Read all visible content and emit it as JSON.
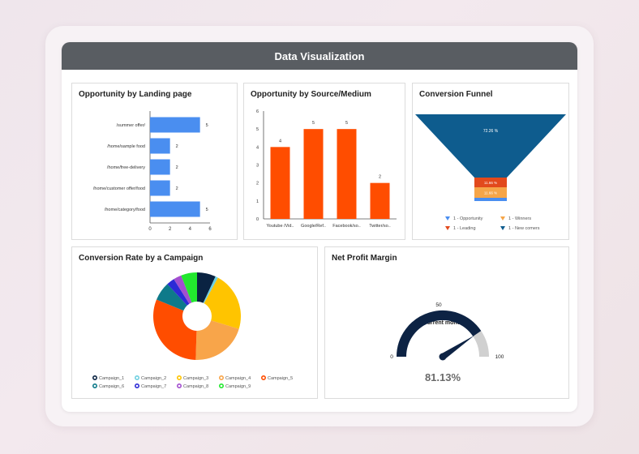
{
  "header": {
    "title": "Data Visualization"
  },
  "cards": {
    "landing": {
      "title": "Opportunity by Landing page"
    },
    "source": {
      "title": "Opportunity by Source/Medium"
    },
    "funnel": {
      "title": "Conversion Funnel"
    },
    "campaign": {
      "title": "Conversion Rate by a Campaign"
    },
    "profit": {
      "title": "Net Profit Margin"
    }
  },
  "chart_data": [
    {
      "id": "landing",
      "type": "bar",
      "orientation": "horizontal",
      "title": "Opportunity by Landing page",
      "categories": [
        "/summer offer/",
        "/home/sample food",
        "/home/free-delivery",
        "/home/customer offer/food",
        "/home/category/food"
      ],
      "values": [
        5,
        2,
        2,
        2,
        5
      ],
      "xticks": [
        "0",
        "2",
        "4",
        "6"
      ],
      "xlim": [
        0,
        6
      ],
      "color": "#4a8ef0"
    },
    {
      "id": "source",
      "type": "bar",
      "title": "Opportunity by Source/Medium",
      "categories": [
        "Youtube /Vid..",
        "Google/Ref..",
        "Facebook/so..",
        "Twitter/so.."
      ],
      "values": [
        4,
        5,
        5,
        2
      ],
      "yticks": [
        "0",
        "1",
        "2",
        "3",
        "4",
        "5",
        "6"
      ],
      "ylim": [
        0,
        6
      ],
      "color": "#ff4d00"
    },
    {
      "id": "funnel",
      "type": "funnel",
      "title": "Conversion Funnel",
      "stages": [
        {
          "label": "72.26 %",
          "value": 72.26,
          "color": "#0e5c8e"
        },
        {
          "label": "11.66 %",
          "value": 11.66,
          "color": "#e2491c"
        },
        {
          "label": "11.66 %",
          "value": 11.66,
          "color": "#f6a548"
        },
        {
          "label": "",
          "value": 4.42,
          "color": "#4a8ef0"
        }
      ],
      "legend": [
        {
          "label": "1 - Opportunity",
          "color": "#4a8ef0"
        },
        {
          "label": "1 - Winners",
          "color": "#f6a548"
        },
        {
          "label": "1 - Leading",
          "color": "#e2491c"
        },
        {
          "label": "1 - New comers",
          "color": "#0e5c8e"
        }
      ]
    },
    {
      "id": "campaign",
      "type": "pie",
      "donut": true,
      "title": "Conversion Rate by a Campaign",
      "slices": [
        {
          "name": "Campaign_1",
          "value": 7,
          "color": "#0a2342"
        },
        {
          "name": "Campaign_2",
          "value": 1,
          "color": "#6fd0e0"
        },
        {
          "name": "Campaign_3",
          "value": 22,
          "color": "#ffc400"
        },
        {
          "name": "Campaign_4",
          "value": 21,
          "color": "#f8a54a"
        },
        {
          "name": "Campaign_5",
          "value": 31,
          "color": "#ff4d00"
        },
        {
          "name": "Campaign_6",
          "value": 7,
          "color": "#0e7a8a"
        },
        {
          "name": "Campaign_7",
          "value": 3,
          "color": "#2c2ad6"
        },
        {
          "name": "Campaign_8",
          "value": 3,
          "color": "#a34fcf"
        },
        {
          "name": "Campaign_9",
          "value": 6,
          "color": "#22e82e"
        }
      ]
    },
    {
      "id": "profit",
      "type": "gauge",
      "title": "Net Profit Margin",
      "subtitle": "Current month",
      "value": 81.13,
      "value_label": "81.13%",
      "min_label": "0",
      "mid_label": "50",
      "max_label": "100",
      "range": [
        0,
        100
      ],
      "colors": {
        "fill": "#0d2344",
        "rest": "#d0d0d0",
        "needle": "#0d2344"
      }
    }
  ]
}
